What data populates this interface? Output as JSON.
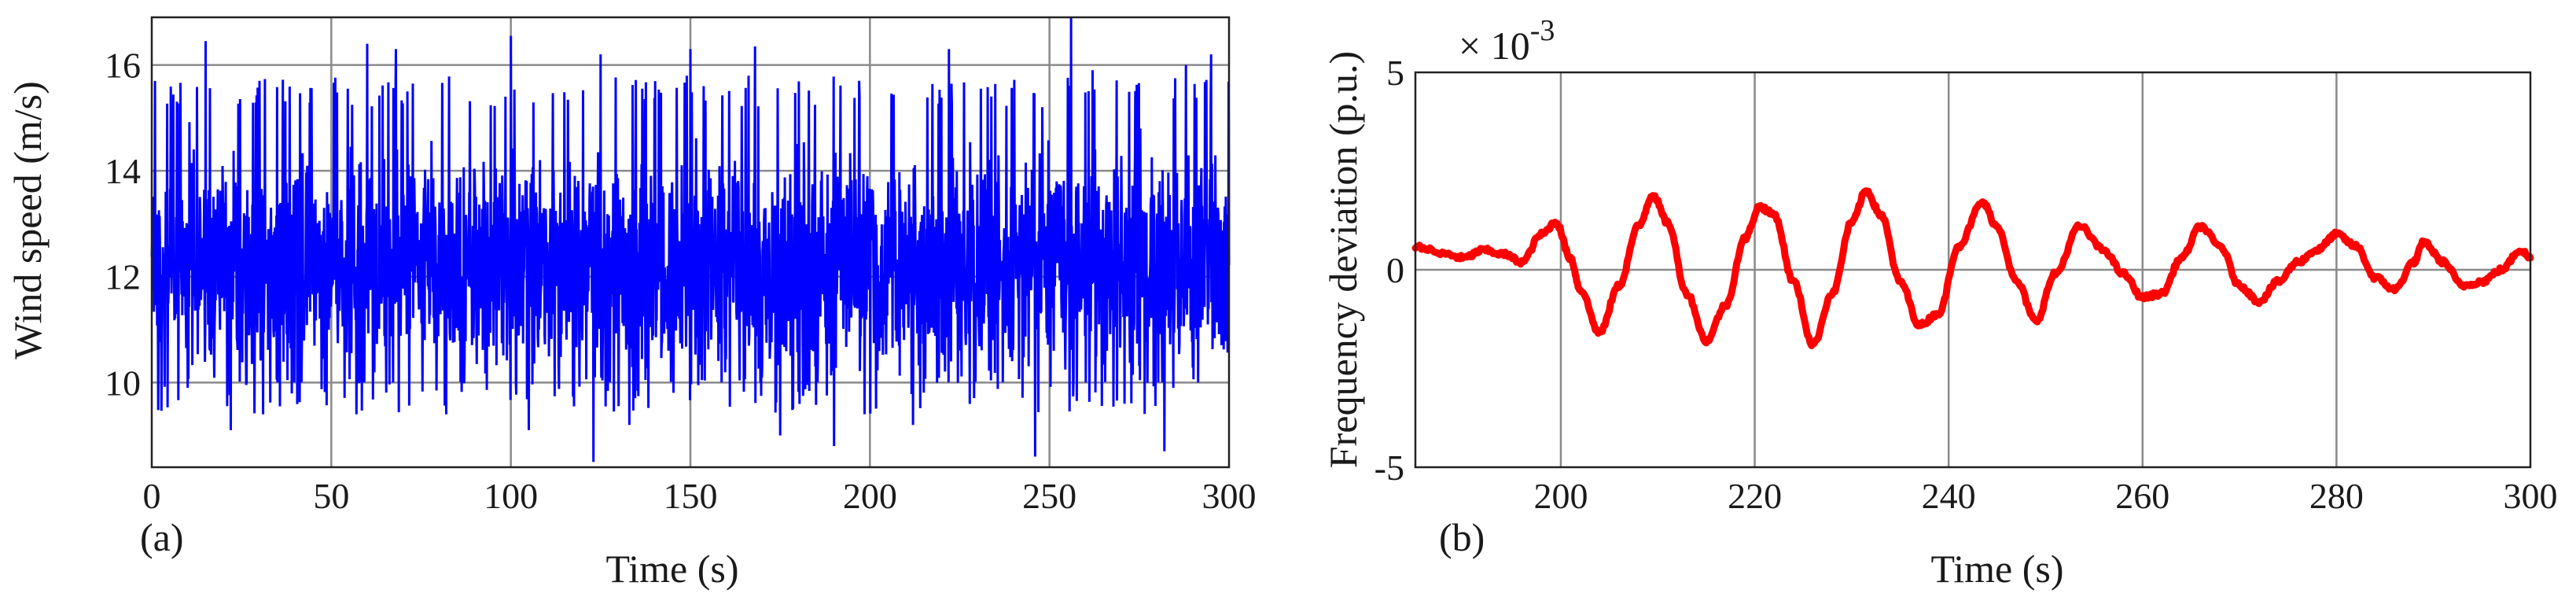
{
  "chart_data": [
    {
      "type": "line",
      "panel_label": "(a)",
      "xlabel": "Time (s)",
      "ylabel": "Wind speed (m/s)",
      "xlim": [
        0,
        300
      ],
      "ylim": [
        8.4,
        16.9
      ],
      "xticks": [
        0,
        50,
        100,
        150,
        200,
        250,
        300
      ],
      "yticks": [
        10,
        12,
        14,
        16
      ],
      "grid": true,
      "series": [
        {
          "color": "#0000ff",
          "noise": true,
          "center": 12.2,
          "spread": 1.55,
          "dt": 0.1,
          "peaks": [
            [
              7,
              16.3
            ],
            [
              15,
              16.45
            ],
            [
              30,
              15.7
            ],
            [
              60,
              16.4
            ],
            [
              68,
              16.3
            ],
            [
              100,
              16.55
            ],
            [
              125,
              16.2
            ],
            [
              150,
              16.3
            ],
            [
              168,
              16.35
            ],
            [
              222,
              16.3
            ],
            [
              256,
              16.9
            ],
            [
              262,
              15.9
            ],
            [
              288,
              16.0
            ],
            [
              295,
              16.2
            ]
          ],
          "troughs": [
            [
              10,
              9.9
            ],
            [
              22,
              9.1
            ],
            [
              31,
              9.4
            ],
            [
              82,
              9.4
            ],
            [
              105,
              9.1
            ],
            [
              123,
              8.5
            ],
            [
              133,
              9.2
            ],
            [
              175,
              9.0
            ],
            [
              190,
              8.8
            ],
            [
              212,
              9.2
            ],
            [
              238,
              8.6
            ],
            [
              246,
              8.6
            ],
            [
              282,
              8.7
            ]
          ]
        }
      ]
    },
    {
      "type": "line",
      "panel_label": "(b)",
      "xlabel": "Time (s)",
      "ylabel": "Frequency deviation (p.u.)",
      "exponent_label": "× 10",
      "exponent_power": "-3",
      "xlim": [
        185,
        300
      ],
      "ylim": [
        -5,
        5
      ],
      "xticks": [
        200,
        220,
        240,
        260,
        280,
        300
      ],
      "yticks": [
        -5,
        0,
        5
      ],
      "grid": true,
      "series": [
        {
          "color": "#ff0000",
          "x": [
            185,
            188,
            190,
            192,
            194,
            196,
            198,
            199.5,
            201,
            202,
            204,
            206,
            208,
            209.5,
            211,
            213,
            215,
            217,
            219,
            220.5,
            222,
            224,
            226,
            228,
            230,
            231.5,
            233,
            235,
            237,
            239,
            241,
            243.5,
            245,
            247,
            249,
            251,
            253.5,
            256,
            258,
            260,
            262,
            264,
            266,
            268,
            270,
            272,
            274,
            276,
            278,
            280,
            282,
            284,
            286,
            288,
            289,
            291,
            293,
            295,
            297,
            299,
            300
          ],
          "y": [
            0.6,
            0.4,
            0.3,
            0.5,
            0.4,
            0.2,
            0.9,
            1.2,
            0.3,
            -0.5,
            -1.6,
            -0.4,
            1.1,
            1.9,
            1.2,
            -0.6,
            -1.8,
            -0.9,
            0.8,
            1.6,
            1.4,
            -0.3,
            -1.9,
            -0.6,
            1.2,
            2.0,
            1.4,
            -0.3,
            -1.4,
            -1.1,
            0.6,
            1.7,
            1.1,
            -0.3,
            -1.3,
            -0.1,
            1.1,
            0.5,
            -0.1,
            -0.7,
            -0.6,
            0.3,
            1.1,
            0.6,
            -0.4,
            -0.8,
            -0.3,
            0.2,
            0.5,
            0.9,
            0.6,
            -0.2,
            -0.5,
            0.2,
            0.7,
            0.2,
            -0.4,
            -0.3,
            0.0,
            0.5,
            0.3
          ]
        }
      ]
    }
  ]
}
